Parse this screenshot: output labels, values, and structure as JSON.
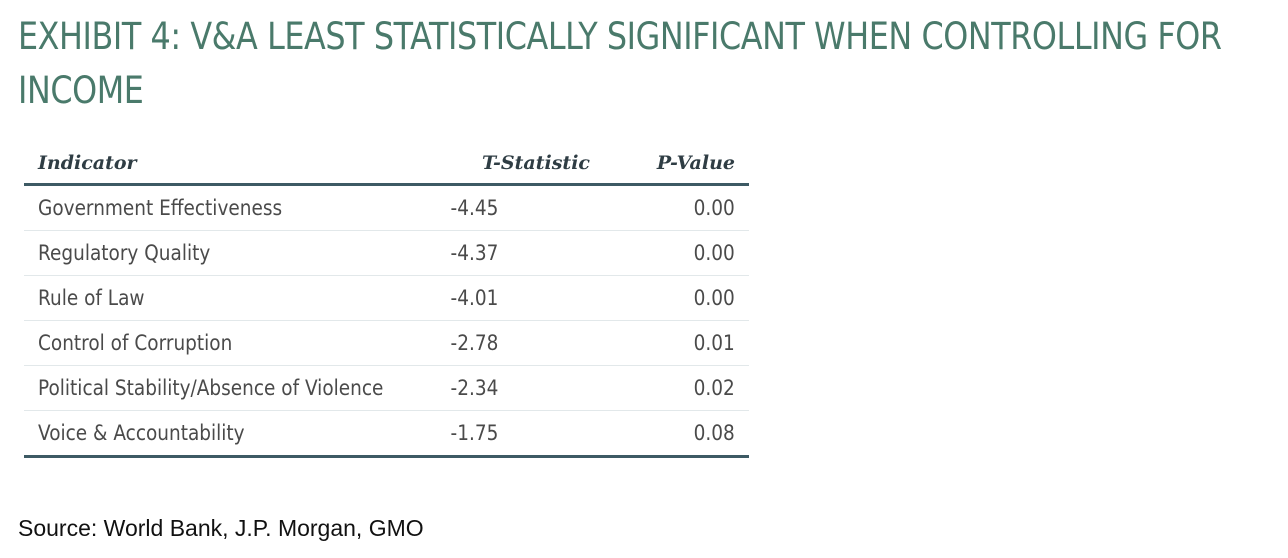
{
  "title": {
    "line1": "EXHIBIT 4: V&A LEAST STATISTICALLY SIGNIFICANT WHEN CONTROLLING FOR",
    "line2": "INCOME"
  },
  "colors": {
    "title": "#4a7a6b",
    "rule": "#3d5a64",
    "row_divider": "#e2e8ea",
    "header_text": "#2f3d44",
    "body_text": "#4a4a4a"
  },
  "chart_data": {
    "type": "table",
    "columns": [
      "Indicator",
      "T-Statistic",
      "P-Value"
    ],
    "rows": [
      {
        "indicator": "Government Effectiveness",
        "t_statistic": "-4.45",
        "p_value": "0.00"
      },
      {
        "indicator": "Regulatory Quality",
        "t_statistic": "-4.37",
        "p_value": "0.00"
      },
      {
        "indicator": "Rule of Law",
        "t_statistic": "-4.01",
        "p_value": "0.00"
      },
      {
        "indicator": "Control of Corruption",
        "t_statistic": "-2.78",
        "p_value": "0.01"
      },
      {
        "indicator": "Political Stability/Absence of Violence",
        "t_statistic": "-2.34",
        "p_value": "0.02"
      },
      {
        "indicator": "Voice & Accountability",
        "t_statistic": "-1.75",
        "p_value": "0.08"
      }
    ]
  },
  "source": "Source: World Bank, J.P. Morgan, GMO"
}
